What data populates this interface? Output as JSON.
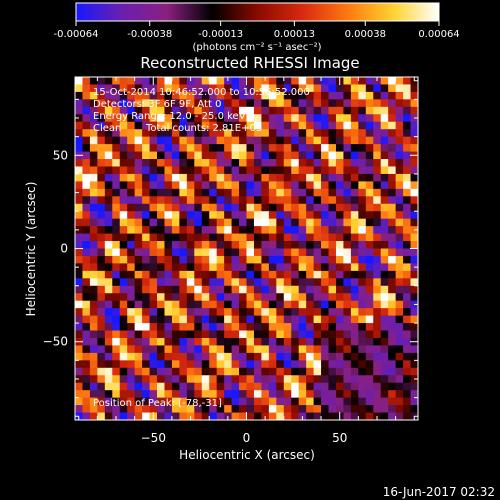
{
  "chart_data": {
    "type": "heatmap",
    "title": "Reconstructed RHESSI Image",
    "xlabel": "Heliocentric X (arcsec)",
    "ylabel": "Heliocentric Y (arcsec)",
    "xlim": [
      -92,
      92
    ],
    "ylim": [
      -92,
      92
    ],
    "x_ticks": [
      -50,
      0,
      50
    ],
    "y_ticks": [
      -50,
      0,
      50
    ],
    "colorbar": {
      "range": [
        -0.00064,
        0.00064
      ],
      "tick_values": [
        -0.00064,
        -0.00038,
        -0.00013,
        0.00013,
        0.00038,
        0.00064
      ],
      "tick_labels": [
        "-0.00064",
        "-0.00038",
        "-0.00013",
        "0.00013",
        "0.00038",
        "0.00064"
      ],
      "units_label": "(photons cm⁻² s⁻¹ asec⁻²)",
      "colors": [
        "#1818ff",
        "#6a1fb0",
        "#8a2080",
        "#000000",
        "#8a0a00",
        "#d82a10",
        "#ff7a10",
        "#ffd230",
        "#ffffff"
      ]
    },
    "grid": {
      "cells_x": 46,
      "cells_y": 46,
      "cell_size_arcsec": 4,
      "pattern": "diagonal fringes running from upper-left to lower-right, fringe period about 17 arcsec"
    },
    "annotations": {
      "time_range": "15-Oct-2014 10:46:52.000 to 10:56:52.000",
      "detectors": "Detectors: 3F 6F 9F, Att 0",
      "energy_range": "Energy Range: 12.0 - 25.0 keV",
      "algorithm": "Clean",
      "total_counts": "Total counts: 2.81E+03",
      "peak_position": "Position of Peak: [-78,-31]"
    },
    "grid_lines": false,
    "legend": "colorbar top"
  },
  "footer": {
    "timestamp": "16-Jun-2017 02:32"
  }
}
